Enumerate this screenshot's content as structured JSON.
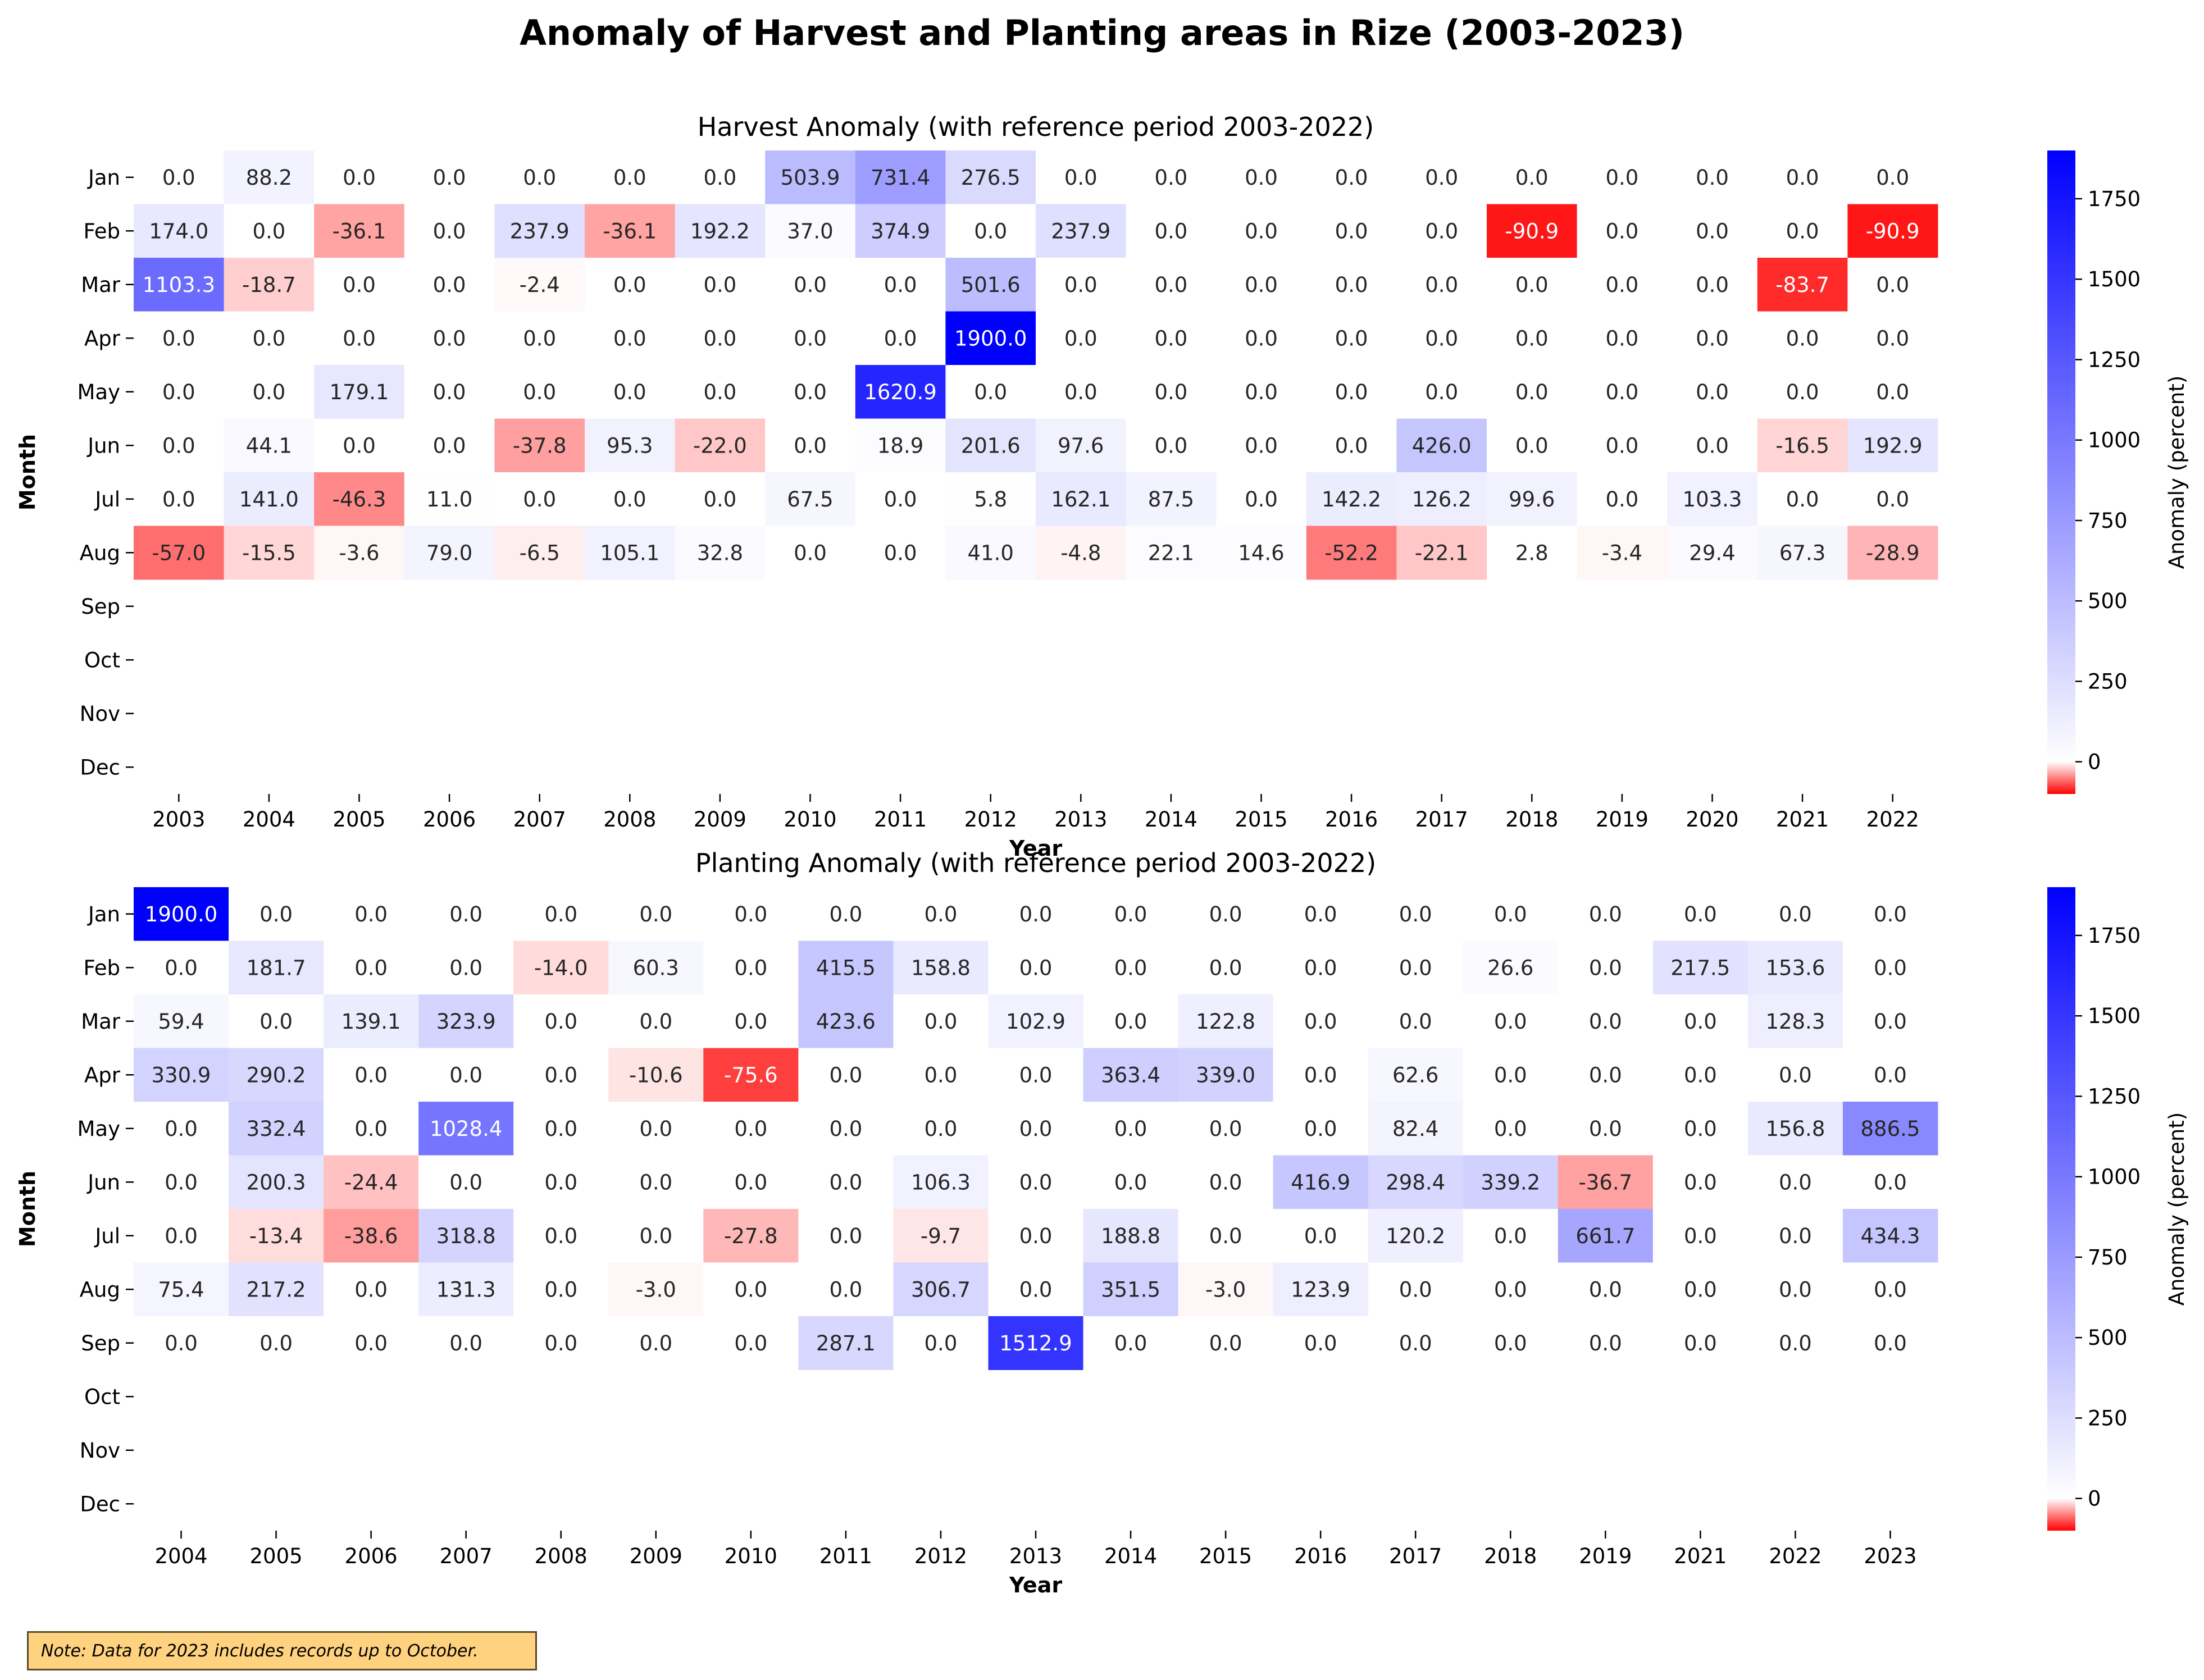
{
  "title": "Anomaly of Harvest and Planting areas in Rize (2003-2023)",
  "note": "Note: Data for 2023 includes records up to October.",
  "chart_data": [
    {
      "type": "heatmap",
      "title": "Harvest Anomaly (with reference period 2003-2022)",
      "xlabel": "Year",
      "ylabel": "Month",
      "colorbar_label": "Anomaly (percent)",
      "colorbar_ticks": [
        0,
        250,
        500,
        750,
        1000,
        1250,
        1500,
        1750
      ],
      "colorbar_range": [
        -100,
        1900
      ],
      "colors": {
        "negative": "#ff0000",
        "zero": "#ffffff",
        "positive": "#0000ff"
      },
      "x": [
        "2003",
        "2004",
        "2005",
        "2006",
        "2007",
        "2008",
        "2009",
        "2010",
        "2011",
        "2012",
        "2013",
        "2014",
        "2015",
        "2016",
        "2017",
        "2018",
        "2019",
        "2020",
        "2021",
        "2022"
      ],
      "y": [
        "Jan",
        "Feb",
        "Mar",
        "Apr",
        "May",
        "Jun",
        "Jul",
        "Aug",
        "Sep",
        "Oct",
        "Nov",
        "Dec"
      ],
      "values": [
        [
          0.0,
          88.2,
          0.0,
          0.0,
          0.0,
          0.0,
          0.0,
          503.9,
          731.4,
          276.5,
          0.0,
          0.0,
          0.0,
          0.0,
          0.0,
          0.0,
          0.0,
          0.0,
          0.0,
          0.0
        ],
        [
          174.0,
          0.0,
          -36.1,
          0.0,
          237.9,
          -36.1,
          192.2,
          37.0,
          374.9,
          0.0,
          237.9,
          0.0,
          0.0,
          0.0,
          0.0,
          -90.9,
          0.0,
          0.0,
          0.0,
          -90.9
        ],
        [
          1103.3,
          -18.7,
          0.0,
          0.0,
          -2.4,
          0.0,
          0.0,
          0.0,
          0.0,
          501.6,
          0.0,
          0.0,
          0.0,
          0.0,
          0.0,
          0.0,
          0.0,
          0.0,
          -83.7,
          0.0
        ],
        [
          0.0,
          0.0,
          0.0,
          0.0,
          0.0,
          0.0,
          0.0,
          0.0,
          0.0,
          1900.0,
          0.0,
          0.0,
          0.0,
          0.0,
          0.0,
          0.0,
          0.0,
          0.0,
          0.0,
          0.0
        ],
        [
          0.0,
          0.0,
          179.1,
          0.0,
          0.0,
          0.0,
          0.0,
          0.0,
          1620.9,
          0.0,
          0.0,
          0.0,
          0.0,
          0.0,
          0.0,
          0.0,
          0.0,
          0.0,
          0.0,
          0.0
        ],
        [
          0.0,
          44.1,
          0.0,
          0.0,
          -37.8,
          95.3,
          -22.0,
          0.0,
          18.9,
          201.6,
          97.6,
          0.0,
          0.0,
          0.0,
          426.0,
          0.0,
          0.0,
          0.0,
          -16.5,
          192.9
        ],
        [
          0.0,
          141.0,
          -46.3,
          11.0,
          0.0,
          0.0,
          0.0,
          67.5,
          0.0,
          5.8,
          162.1,
          87.5,
          0.0,
          142.2,
          126.2,
          99.6,
          0.0,
          103.3,
          0.0,
          0.0
        ],
        [
          -57.0,
          -15.5,
          -3.6,
          79.0,
          -6.5,
          105.1,
          32.8,
          0.0,
          0.0,
          41.0,
          -4.8,
          22.1,
          14.6,
          -52.2,
          -22.1,
          2.8,
          -3.4,
          29.4,
          67.3,
          -28.9
        ],
        [
          null,
          null,
          null,
          null,
          null,
          null,
          null,
          null,
          null,
          null,
          null,
          null,
          null,
          null,
          null,
          null,
          null,
          null,
          null,
          null
        ],
        [
          null,
          null,
          null,
          null,
          null,
          null,
          null,
          null,
          null,
          null,
          null,
          null,
          null,
          null,
          null,
          null,
          null,
          null,
          null,
          null
        ],
        [
          null,
          null,
          null,
          null,
          null,
          null,
          null,
          null,
          null,
          null,
          null,
          null,
          null,
          null,
          null,
          null,
          null,
          null,
          null,
          null
        ],
        [
          null,
          null,
          null,
          null,
          null,
          null,
          null,
          null,
          null,
          null,
          null,
          null,
          null,
          null,
          null,
          null,
          null,
          null,
          null,
          null
        ]
      ]
    },
    {
      "type": "heatmap",
      "title": "Planting Anomaly (with reference period 2003-2022)",
      "xlabel": "Year",
      "ylabel": "Month",
      "colorbar_label": "Anomaly (percent)",
      "colorbar_ticks": [
        0,
        250,
        500,
        750,
        1000,
        1250,
        1500,
        1750
      ],
      "colorbar_range": [
        -100,
        1900
      ],
      "colors": {
        "negative": "#ff0000",
        "zero": "#ffffff",
        "positive": "#0000ff"
      },
      "x": [
        "2004",
        "2005",
        "2006",
        "2007",
        "2008",
        "2009",
        "2010",
        "2011",
        "2012",
        "2013",
        "2014",
        "2015",
        "2016",
        "2017",
        "2018",
        "2019",
        "2021",
        "2022",
        "2023"
      ],
      "y": [
        "Jan",
        "Feb",
        "Mar",
        "Apr",
        "May",
        "Jun",
        "Jul",
        "Aug",
        "Sep",
        "Oct",
        "Nov",
        "Dec"
      ],
      "values": [
        [
          1900.0,
          0.0,
          0.0,
          0.0,
          0.0,
          0.0,
          0.0,
          0.0,
          0.0,
          0.0,
          0.0,
          0.0,
          0.0,
          0.0,
          0.0,
          0.0,
          0.0,
          0.0,
          0.0
        ],
        [
          0.0,
          181.7,
          0.0,
          0.0,
          -14.0,
          60.3,
          0.0,
          415.5,
          158.8,
          0.0,
          0.0,
          0.0,
          0.0,
          0.0,
          26.6,
          0.0,
          217.5,
          153.6,
          0.0
        ],
        [
          59.4,
          0.0,
          139.1,
          323.9,
          0.0,
          0.0,
          0.0,
          423.6,
          0.0,
          102.9,
          0.0,
          122.8,
          0.0,
          0.0,
          0.0,
          0.0,
          0.0,
          128.3,
          0.0
        ],
        [
          330.9,
          290.2,
          0.0,
          0.0,
          0.0,
          -10.6,
          -75.6,
          0.0,
          0.0,
          0.0,
          363.4,
          339.0,
          0.0,
          62.6,
          0.0,
          0.0,
          0.0,
          0.0,
          0.0
        ],
        [
          0.0,
          332.4,
          0.0,
          1028.4,
          0.0,
          0.0,
          0.0,
          0.0,
          0.0,
          0.0,
          0.0,
          0.0,
          0.0,
          82.4,
          0.0,
          0.0,
          0.0,
          156.8,
          886.5
        ],
        [
          0.0,
          200.3,
          -24.4,
          0.0,
          0.0,
          0.0,
          0.0,
          0.0,
          106.3,
          0.0,
          0.0,
          0.0,
          416.9,
          298.4,
          339.2,
          -36.7,
          0.0,
          0.0,
          0.0
        ],
        [
          0.0,
          -13.4,
          -38.6,
          318.8,
          0.0,
          0.0,
          -27.8,
          0.0,
          -9.7,
          0.0,
          188.8,
          0.0,
          0.0,
          120.2,
          0.0,
          661.7,
          0.0,
          0.0,
          434.3
        ],
        [
          75.4,
          217.2,
          0.0,
          131.3,
          0.0,
          -3.0,
          0.0,
          0.0,
          306.7,
          0.0,
          351.5,
          -3.0,
          123.9,
          0.0,
          0.0,
          0.0,
          0.0,
          0.0,
          0.0
        ],
        [
          0.0,
          0.0,
          0.0,
          0.0,
          0.0,
          0.0,
          0.0,
          287.1,
          0.0,
          1512.9,
          0.0,
          0.0,
          0.0,
          0.0,
          0.0,
          0.0,
          0.0,
          0.0,
          0.0
        ],
        [
          null,
          null,
          null,
          null,
          null,
          null,
          null,
          null,
          null,
          null,
          null,
          null,
          null,
          null,
          null,
          null,
          null,
          null,
          null
        ],
        [
          null,
          null,
          null,
          null,
          null,
          null,
          null,
          null,
          null,
          null,
          null,
          null,
          null,
          null,
          null,
          null,
          null,
          null,
          null
        ],
        [
          null,
          null,
          null,
          null,
          null,
          null,
          null,
          null,
          null,
          null,
          null,
          null,
          null,
          null,
          null,
          null,
          null,
          null,
          null
        ]
      ]
    }
  ]
}
